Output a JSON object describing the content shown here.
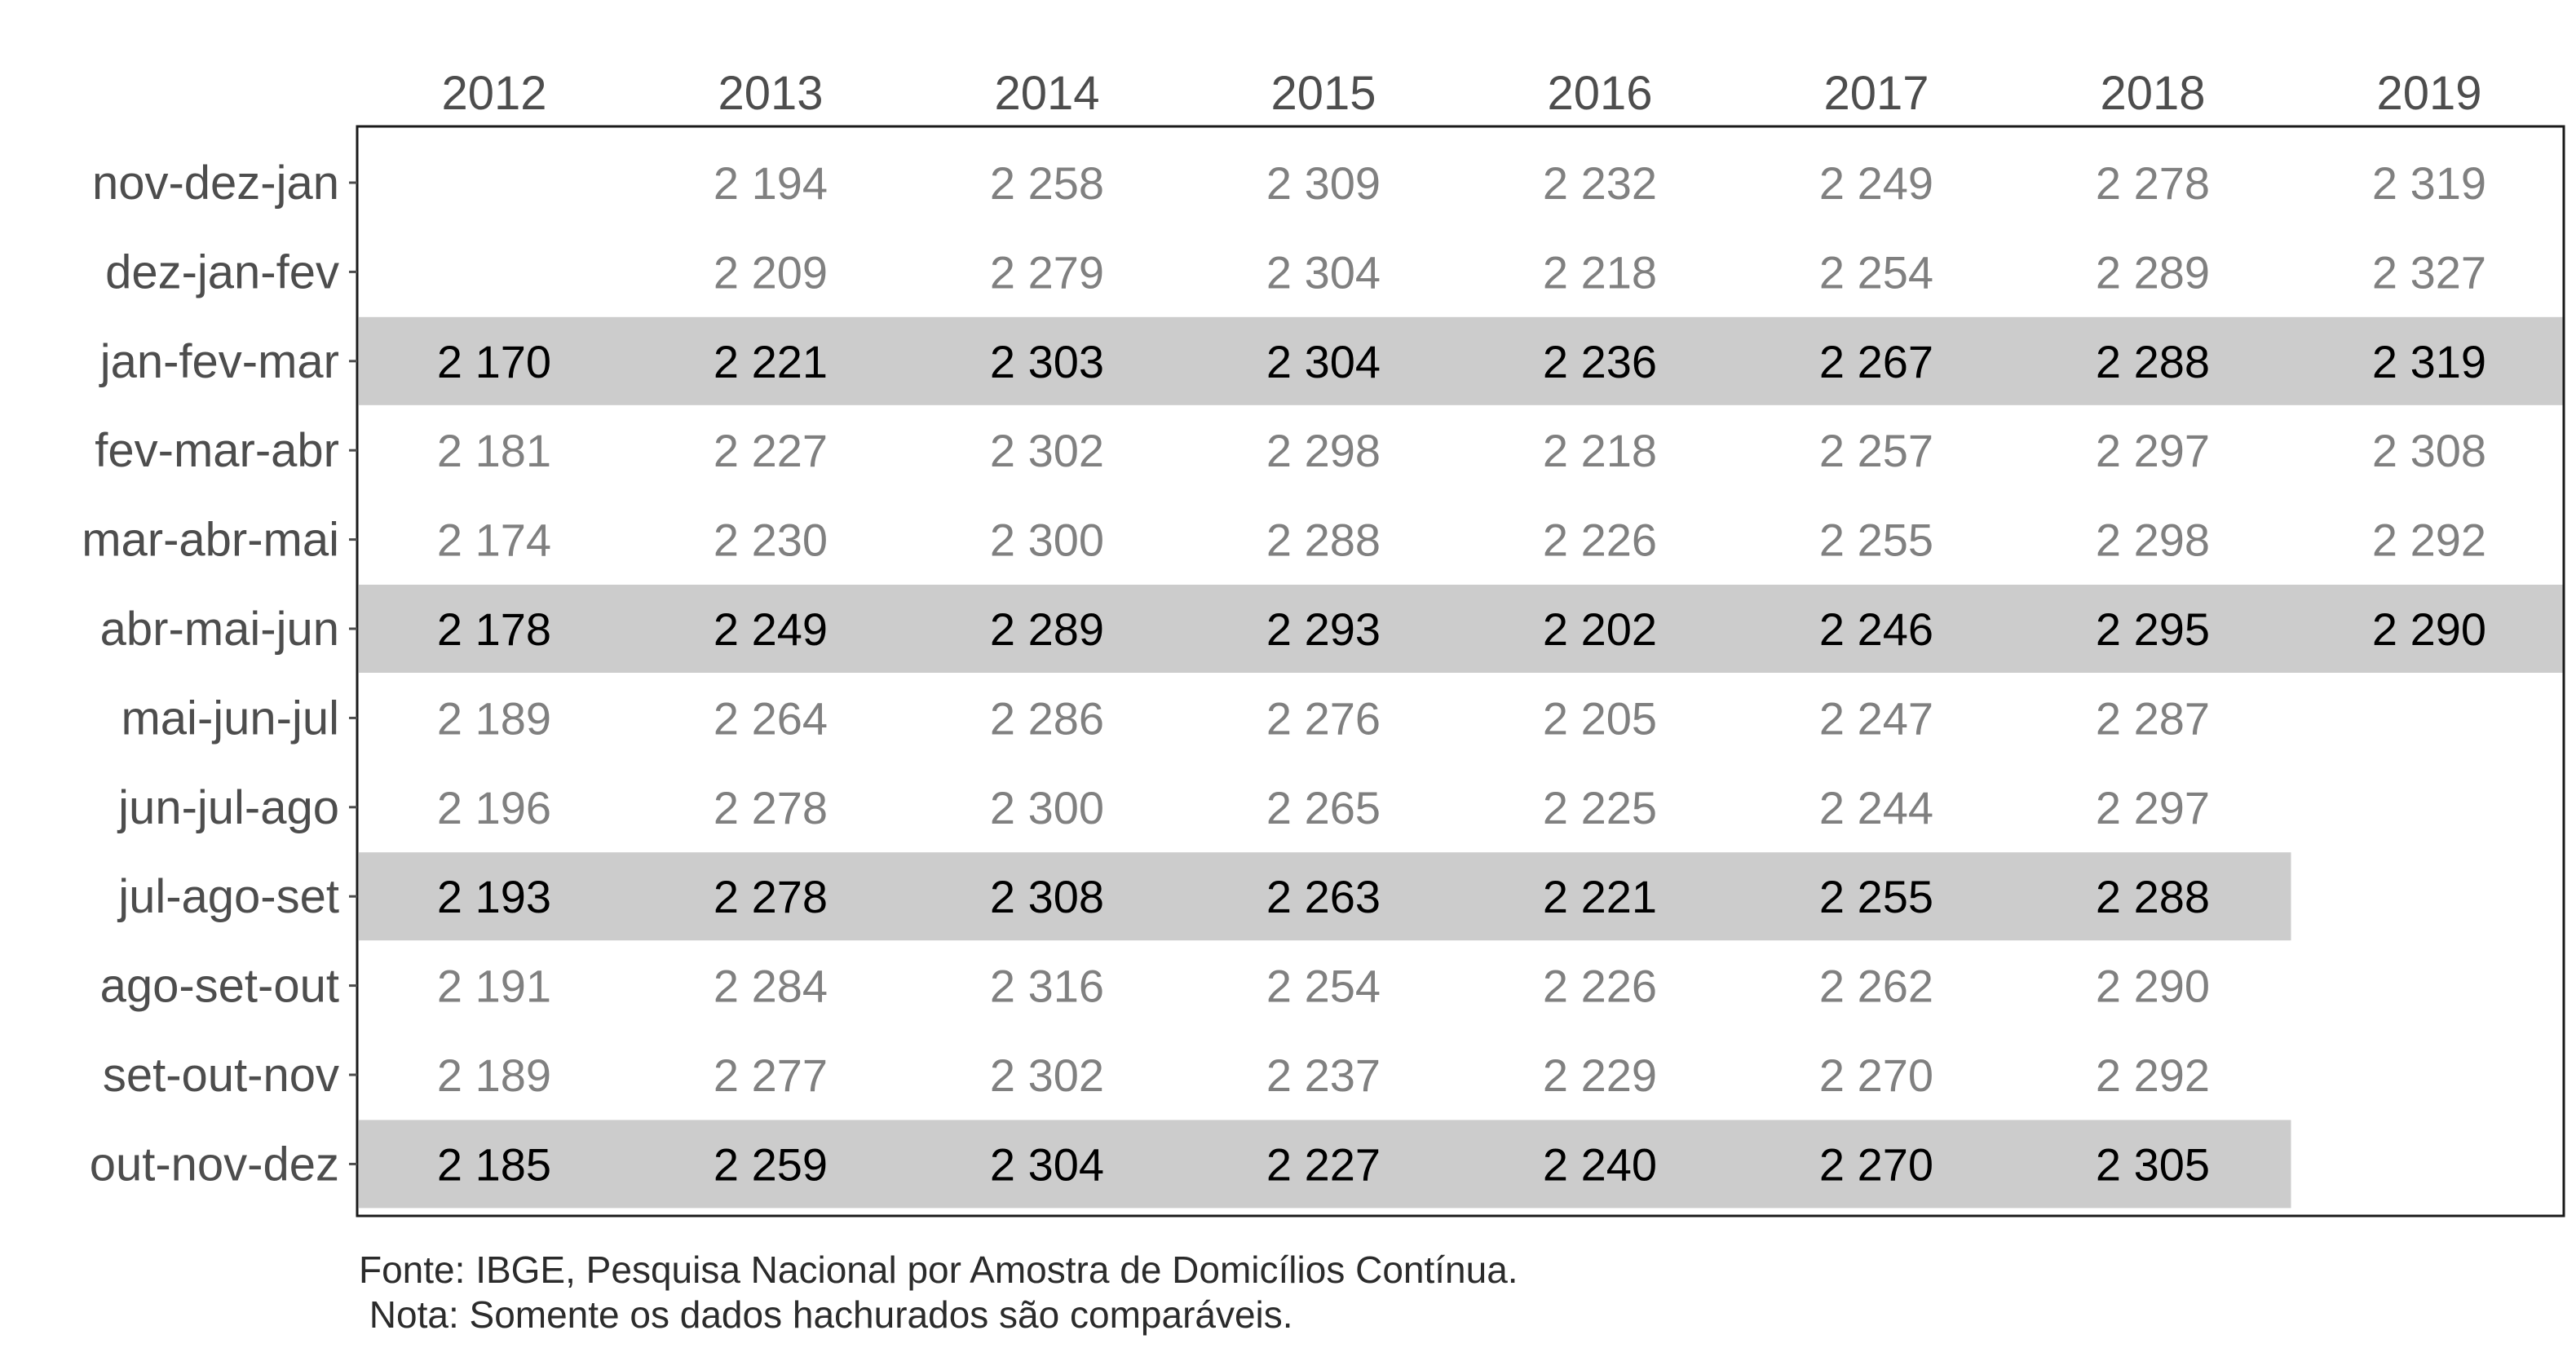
{
  "chart_data": {
    "type": "table",
    "columns": [
      "2012",
      "2013",
      "2014",
      "2015",
      "2016",
      "2017",
      "2018",
      "2019"
    ],
    "rows": [
      {
        "label": "nov-dez-jan",
        "highlighted": false,
        "values": [
          "",
          "2 194",
          "2 258",
          "2 309",
          "2 232",
          "2 249",
          "2 278",
          "2 319"
        ]
      },
      {
        "label": "dez-jan-fev",
        "highlighted": false,
        "values": [
          "",
          "2 209",
          "2 279",
          "2 304",
          "2 218",
          "2 254",
          "2 289",
          "2 327"
        ]
      },
      {
        "label": "jan-fev-mar",
        "highlighted": true,
        "values": [
          "2 170",
          "2 221",
          "2 303",
          "2 304",
          "2 236",
          "2 267",
          "2 288",
          "2 319"
        ]
      },
      {
        "label": "fev-mar-abr",
        "highlighted": false,
        "values": [
          "2 181",
          "2 227",
          "2 302",
          "2 298",
          "2 218",
          "2 257",
          "2 297",
          "2 308"
        ]
      },
      {
        "label": "mar-abr-mai",
        "highlighted": false,
        "values": [
          "2 174",
          "2 230",
          "2 300",
          "2 288",
          "2 226",
          "2 255",
          "2 298",
          "2 292"
        ]
      },
      {
        "label": "abr-mai-jun",
        "highlighted": true,
        "values": [
          "2 178",
          "2 249",
          "2 289",
          "2 293",
          "2 202",
          "2 246",
          "2 295",
          "2 290"
        ]
      },
      {
        "label": "mai-jun-jul",
        "highlighted": false,
        "values": [
          "2 189",
          "2 264",
          "2 286",
          "2 276",
          "2 205",
          "2 247",
          "2 287",
          ""
        ]
      },
      {
        "label": "jun-jul-ago",
        "highlighted": false,
        "values": [
          "2 196",
          "2 278",
          "2 300",
          "2 265",
          "2 225",
          "2 244",
          "2 297",
          ""
        ]
      },
      {
        "label": "jul-ago-set",
        "highlighted": true,
        "values": [
          "2 193",
          "2 278",
          "2 308",
          "2 263",
          "2 221",
          "2 255",
          "2 288",
          ""
        ]
      },
      {
        "label": "ago-set-out",
        "highlighted": false,
        "values": [
          "2 191",
          "2 284",
          "2 316",
          "2 254",
          "2 226",
          "2 262",
          "2 290",
          ""
        ]
      },
      {
        "label": "set-out-nov",
        "highlighted": false,
        "values": [
          "2 189",
          "2 277",
          "2 302",
          "2 237",
          "2 229",
          "2 270",
          "2 292",
          ""
        ]
      },
      {
        "label": "out-nov-dez",
        "highlighted": true,
        "values": [
          "2 185",
          "2 259",
          "2 304",
          "2 227",
          "2 240",
          "2 270",
          "2 305",
          ""
        ]
      }
    ],
    "colors": {
      "highlight_band": "#cccccc",
      "highlight_text": "#000000",
      "normal_text": "#808080",
      "axis_text": "#4d4d4d",
      "frame": "#1a1a1a"
    }
  },
  "footer": {
    "source": "Fonte: IBGE, Pesquisa Nacional por Amostra de Domicílios Contínua.",
    "note": " Nota: Somente os dados hachurados são comparáveis."
  }
}
